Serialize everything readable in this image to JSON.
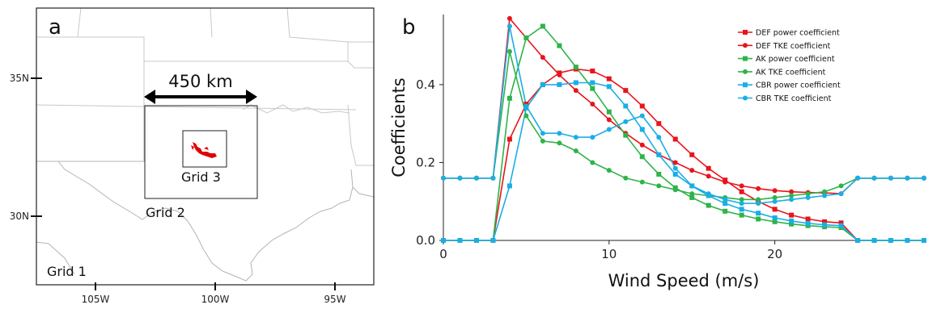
{
  "panel_a": {
    "letter": "a",
    "lat_labels": [
      "35N",
      "30N"
    ],
    "lon_labels": [
      "105W",
      "100W",
      "95W"
    ],
    "grid1_label": "Grid 1",
    "grid2_label": "Grid 2",
    "grid3_label": "Grid 3",
    "distance_label": "450 km",
    "farm_color": "#e00000"
  },
  "panel_b": {
    "letter": "b"
  },
  "chart_data": {
    "type": "line",
    "xlabel": "Wind Speed (m/s)",
    "ylabel": "Coefficients",
    "xlim": [
      0,
      29
    ],
    "ylim": [
      0,
      0.58
    ],
    "xticks": [
      "0",
      "10",
      "20"
    ],
    "yticks": [
      "0.0",
      "0.2",
      "0.4"
    ],
    "legend_position": "top-right",
    "grid": false,
    "series": [
      {
        "name": "DEF power coefficient",
        "color": "#e8141c",
        "marker": "square",
        "x": [
          0,
          1,
          2,
          3,
          4,
          5,
          6,
          7,
          8,
          9,
          10,
          11,
          12,
          13,
          14,
          15,
          16,
          17,
          18,
          19,
          20,
          21,
          22,
          23,
          24,
          25,
          26,
          27,
          28,
          29
        ],
        "y": [
          0,
          0,
          0,
          0,
          0.26,
          0.35,
          0.4,
          0.43,
          0.44,
          0.435,
          0.415,
          0.385,
          0.345,
          0.3,
          0.26,
          0.22,
          0.185,
          0.155,
          0.125,
          0.1,
          0.08,
          0.065,
          0.055,
          0.048,
          0.045,
          0,
          0,
          0,
          0,
          0
        ]
      },
      {
        "name": "DEF TKE coefficient",
        "color": "#e8141c",
        "marker": "circle",
        "x": [
          0,
          1,
          2,
          3,
          4,
          5,
          6,
          7,
          8,
          9,
          10,
          11,
          12,
          13,
          14,
          15,
          16,
          17,
          18,
          19,
          20,
          21,
          22,
          23,
          24,
          25,
          26,
          27,
          28,
          29
        ],
        "y": [
          0.16,
          0.16,
          0.16,
          0.16,
          0.57,
          0.52,
          0.47,
          0.425,
          0.385,
          0.35,
          0.31,
          0.275,
          0.245,
          0.22,
          0.2,
          0.18,
          0.165,
          0.15,
          0.14,
          0.133,
          0.128,
          0.125,
          0.123,
          0.122,
          0.12,
          0.16,
          0.16,
          0.16,
          0.16,
          0.16
        ]
      },
      {
        "name": "AK power coefficient",
        "color": "#2fb34a",
        "marker": "square",
        "x": [
          0,
          1,
          2,
          3,
          4,
          5,
          6,
          7,
          8,
          9,
          10,
          11,
          12,
          13,
          14,
          15,
          16,
          17,
          18,
          19,
          20,
          21,
          22,
          23,
          24,
          25,
          26,
          27,
          28,
          29
        ],
        "y": [
          0,
          0,
          0,
          0,
          0.365,
          0.52,
          0.55,
          0.5,
          0.445,
          0.39,
          0.33,
          0.27,
          0.215,
          0.17,
          0.135,
          0.11,
          0.09,
          0.075,
          0.065,
          0.055,
          0.048,
          0.042,
          0.038,
          0.035,
          0.033,
          0,
          0,
          0,
          0,
          0
        ]
      },
      {
        "name": "AK TKE coefficient",
        "color": "#2fb34a",
        "marker": "circle",
        "x": [
          0,
          1,
          2,
          3,
          4,
          5,
          6,
          7,
          8,
          9,
          10,
          11,
          12,
          13,
          14,
          15,
          16,
          17,
          18,
          19,
          20,
          21,
          22,
          23,
          24,
          25,
          26,
          27,
          28,
          29
        ],
        "y": [
          0.16,
          0.16,
          0.16,
          0.16,
          0.485,
          0.32,
          0.255,
          0.25,
          0.23,
          0.2,
          0.18,
          0.16,
          0.15,
          0.14,
          0.13,
          0.12,
          0.115,
          0.11,
          0.105,
          0.105,
          0.11,
          0.115,
          0.12,
          0.125,
          0.14,
          0.16,
          0.16,
          0.16,
          0.16,
          0.16
        ]
      },
      {
        "name": "CBR power coefficient",
        "color": "#1aaee5",
        "marker": "square",
        "x": [
          0,
          1,
          2,
          3,
          4,
          5,
          6,
          7,
          8,
          9,
          10,
          11,
          12,
          13,
          14,
          15,
          16,
          17,
          18,
          19,
          20,
          21,
          22,
          23,
          24,
          25,
          26,
          27,
          28,
          29
        ],
        "y": [
          0,
          0,
          0,
          0,
          0.14,
          0.34,
          0.4,
          0.4,
          0.405,
          0.405,
          0.395,
          0.345,
          0.285,
          0.22,
          0.17,
          0.14,
          0.115,
          0.095,
          0.08,
          0.07,
          0.058,
          0.05,
          0.044,
          0.04,
          0.038,
          0,
          0,
          0,
          0,
          0
        ]
      },
      {
        "name": "CBR TKE coefficient",
        "color": "#1aaee5",
        "marker": "circle",
        "x": [
          0,
          1,
          2,
          3,
          4,
          5,
          6,
          7,
          8,
          9,
          10,
          11,
          12,
          13,
          14,
          15,
          16,
          17,
          18,
          19,
          20,
          21,
          22,
          23,
          24,
          25,
          26,
          27,
          28,
          29
        ],
        "y": [
          0.16,
          0.16,
          0.16,
          0.16,
          0.55,
          0.345,
          0.275,
          0.275,
          0.265,
          0.265,
          0.285,
          0.305,
          0.32,
          0.265,
          0.185,
          0.14,
          0.12,
          0.105,
          0.095,
          0.095,
          0.1,
          0.105,
          0.11,
          0.115,
          0.12,
          0.16,
          0.16,
          0.16,
          0.16,
          0.16
        ]
      }
    ]
  }
}
